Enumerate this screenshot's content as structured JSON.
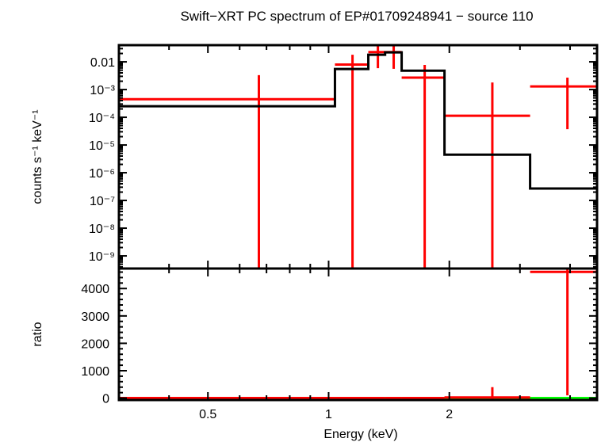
{
  "chart_data": [
    {
      "type": "scatter",
      "title": "Swift−XRT PC spectrum of EP#01709248941 − source 110",
      "xlabel": "Energy (keV)",
      "ylabel": "counts s⁻¹ keV⁻¹",
      "xscale": "log",
      "yscale": "log",
      "xlim": [
        0.3,
        4.67
      ],
      "ylim": [
        3.5e-10,
        0.04
      ],
      "ytick_values": [
        0.01,
        0.001,
        0.0001,
        1e-05,
        1e-06,
        1e-07,
        1e-08,
        1e-09
      ],
      "ytick_labels": [
        "0.01",
        "10⁻³",
        "10⁻⁴",
        "10⁻⁵",
        "10⁻⁶",
        "10⁻⁷",
        "10⁻⁸",
        "10⁻⁹"
      ],
      "colors": {
        "data": "#ff0000",
        "model": "#000000"
      },
      "series": [
        {
          "role": "data",
          "points": [
            {
              "x": 0.67,
              "xlo": 0.3,
              "xhi": 1.037,
              "y": 0.00045,
              "ylo": 3.5e-10,
              "yhi": 0.0033
            },
            {
              "x": 1.147,
              "xlo": 1.037,
              "xhi": 1.256,
              "y": 0.008,
              "ylo": 3.5e-10,
              "yhi": 0.018
            },
            {
              "x": 1.327,
              "xlo": 1.256,
              "xhi": 1.383,
              "y": 0.0225,
              "ylo": 0.0059,
              "yhi": 0.04
            },
            {
              "x": 1.453,
              "xlo": 1.383,
              "xhi": 1.521,
              "y": 0.0225,
              "ylo": 0.0056,
              "yhi": 0.04
            },
            {
              "x": 1.736,
              "xlo": 1.521,
              "xhi": 1.945,
              "y": 0.0027,
              "ylo": 3.5e-10,
              "yhi": 0.0077
            },
            {
              "x": 2.56,
              "xlo": 1.945,
              "xhi": 3.18,
              "y": 0.000114,
              "ylo": 3.5e-10,
              "yhi": 0.0018
            },
            {
              "x": 3.94,
              "xlo": 3.18,
              "xhi": 4.67,
              "y": 0.0013,
              "ylo": 3.7e-05,
              "yhi": 0.0027
            }
          ]
        },
        {
          "role": "model",
          "steps": [
            {
              "xlo": 0.3,
              "xhi": 1.037,
              "y": 0.00025
            },
            {
              "xlo": 1.037,
              "xhi": 1.256,
              "y": 0.0055
            },
            {
              "xlo": 1.256,
              "xhi": 1.383,
              "y": 0.018
            },
            {
              "xlo": 1.383,
              "xhi": 1.521,
              "y": 0.022
            },
            {
              "xlo": 1.521,
              "xhi": 1.945,
              "y": 0.0048
            },
            {
              "xlo": 1.945,
              "xhi": 3.18,
              "y": 4.5e-06
            },
            {
              "xlo": 3.18,
              "xhi": 4.67,
              "y": 2.7e-07
            }
          ]
        }
      ]
    },
    {
      "type": "scatter",
      "xlabel": "Energy (keV)",
      "ylabel": "ratio",
      "xscale": "log",
      "yscale": "linear",
      "xlim": [
        0.3,
        4.67
      ],
      "ylim": [
        -70,
        4730
      ],
      "xtick_values": [
        0.5,
        1,
        2
      ],
      "xtick_labels": [
        "0.5",
        "1",
        "2"
      ],
      "ytick_values": [
        0,
        1000,
        2000,
        3000,
        4000
      ],
      "ytick_labels": [
        "0",
        "1000",
        "2000",
        "3000",
        "4000"
      ],
      "reference_line": {
        "y": 1,
        "color": "#00ff00"
      },
      "points": [
        {
          "x": 0.67,
          "xlo": 0.3,
          "xhi": 1.037,
          "y": 1.8,
          "ylo": 0,
          "yhi": 13
        },
        {
          "x": 1.147,
          "xlo": 1.037,
          "xhi": 1.256,
          "y": 1.4,
          "ylo": 0,
          "yhi": 3.3
        },
        {
          "x": 1.327,
          "xlo": 1.256,
          "xhi": 1.383,
          "y": 1.2,
          "ylo": 0.3,
          "yhi": 2.2
        },
        {
          "x": 1.453,
          "xlo": 1.383,
          "xhi": 1.521,
          "y": 1.0,
          "ylo": 0.25,
          "yhi": 1.8
        },
        {
          "x": 1.736,
          "xlo": 1.521,
          "xhi": 1.945,
          "y": 0.6,
          "ylo": 0,
          "yhi": 1.6
        },
        {
          "x": 2.56,
          "xlo": 1.945,
          "xhi": 3.18,
          "y": 25,
          "ylo": -70,
          "yhi": 400
        },
        {
          "x": 3.94,
          "xlo": 3.18,
          "xhi": 4.67,
          "y": 4607,
          "ylo": 100,
          "yhi": 4730
        }
      ]
    }
  ]
}
